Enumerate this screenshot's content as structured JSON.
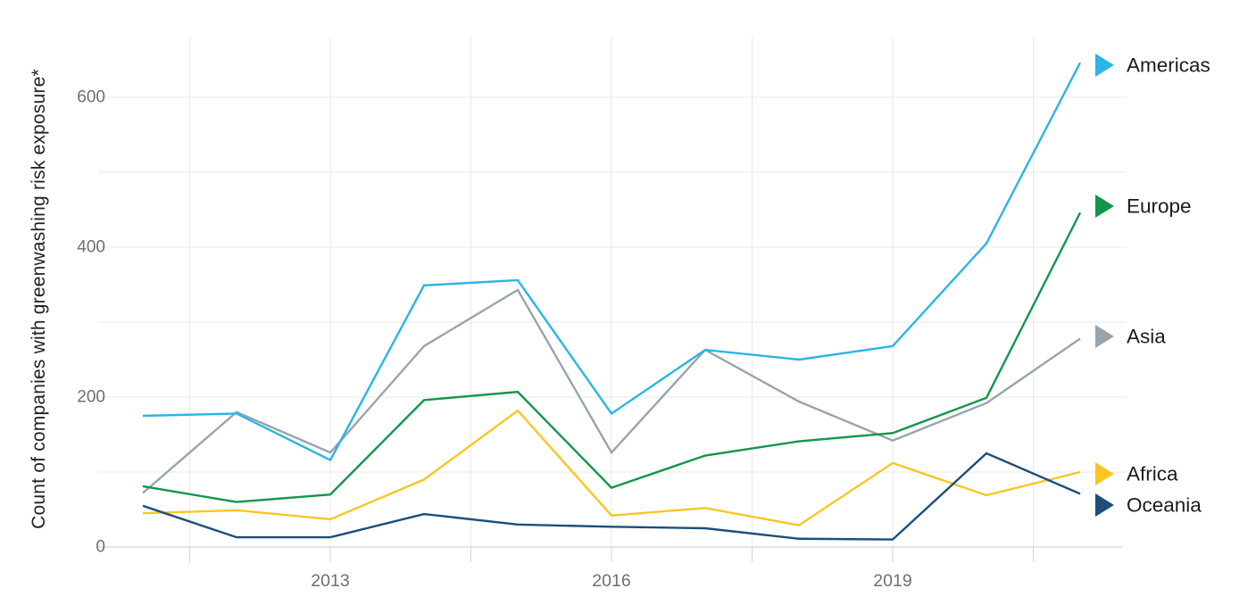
{
  "chart_data": {
    "type": "line",
    "title": "",
    "xlabel": "",
    "ylabel": "Count of companies with greenwashing risk exposure*",
    "x": [
      2011,
      2012,
      2013,
      2014,
      2015,
      2016,
      2017,
      2018,
      2019,
      2020,
      2021
    ],
    "x_tick_labels": [
      "2013",
      "2016",
      "2019"
    ],
    "x_tick_years": [
      2013,
      2016,
      2019
    ],
    "x_grid_years": [
      2011.5,
      2013,
      2014.5,
      2016,
      2017.5,
      2019,
      2020.5
    ],
    "y_ticks": [
      0,
      200,
      400,
      600
    ],
    "y_grid": [
      100,
      200,
      300,
      400,
      500,
      600
    ],
    "ylim": [
      0,
      680
    ],
    "grid": true,
    "legend_position": "right",
    "series": [
      {
        "name": "Americas",
        "color": "#29b5e5",
        "values": [
          175,
          178,
          116,
          349,
          356,
          178,
          263,
          250,
          268,
          405,
          646
        ]
      },
      {
        "name": "Europe",
        "color": "#13964a",
        "values": [
          81,
          60,
          70,
          196,
          207,
          79,
          122,
          141,
          152,
          199,
          446
        ]
      },
      {
        "name": "Asia",
        "color": "#98a4ad",
        "values": [
          72,
          180,
          126,
          268,
          343,
          126,
          263,
          194,
          142,
          192,
          278
        ]
      },
      {
        "name": "Africa",
        "color": "#f9c623",
        "values": [
          45,
          49,
          37,
          90,
          182,
          42,
          52,
          29,
          112,
          69,
          100
        ]
      },
      {
        "name": "Oceania",
        "color": "#1d4e79",
        "values": [
          55,
          13,
          13,
          44,
          30,
          27,
          25,
          11,
          10,
          125,
          71
        ]
      }
    ],
    "colors": {
      "gridline": "#e8e8e8",
      "axis_line": "#d5d5d5",
      "tick_mark": "#d5d5d5",
      "tick_text": "#6f6f6f",
      "legend_text": "#1b1b1b"
    }
  }
}
